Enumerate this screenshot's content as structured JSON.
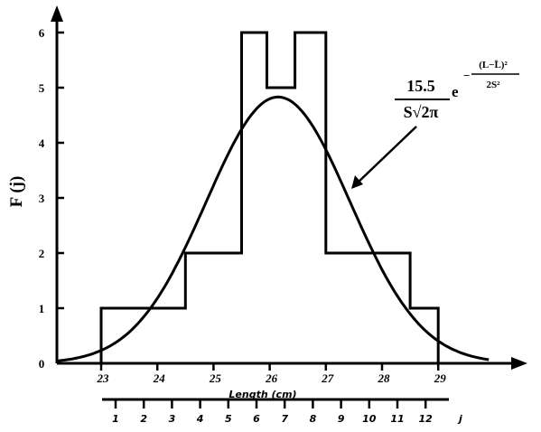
{
  "chart_data": {
    "type": "histogram",
    "ylabel": "F (j)",
    "xlabel": "Length (cm)",
    "x_ticks": [
      23,
      24,
      25,
      26,
      27,
      28,
      29
    ],
    "y_ticks": [
      0,
      1,
      2,
      3,
      4,
      5,
      6
    ],
    "xlim": [
      22.1,
      30.2
    ],
    "ylim": [
      0,
      6.5
    ],
    "bins": [
      {
        "start": 23.0,
        "end": 24.5,
        "count": 1
      },
      {
        "start": 24.5,
        "end": 25.5,
        "count": 2
      },
      {
        "start": 25.5,
        "end": 25.95,
        "count": 6
      },
      {
        "start": 25.95,
        "end": 26.45,
        "count": 5
      },
      {
        "start": 26.45,
        "end": 27.0,
        "count": 6
      },
      {
        "start": 27.0,
        "end": 28.5,
        "count": 2
      },
      {
        "start": 28.5,
        "end": 29.0,
        "count": 1
      }
    ],
    "normal_curve": {
      "mean": 26.15,
      "sd": 1.28,
      "scale": 15.5,
      "range": [
        22.2,
        29.9
      ]
    },
    "formula": {
      "numerator": "15.5",
      "denominator": "S√2π",
      "base": "e",
      "exponent_numerator": "(L−L̄)²",
      "exponent_denominator": "2S²"
    },
    "j_scale": {
      "label": "j",
      "ticks": [
        1,
        2,
        3,
        4,
        5,
        6,
        7,
        8,
        9,
        10,
        11,
        12
      ]
    }
  }
}
